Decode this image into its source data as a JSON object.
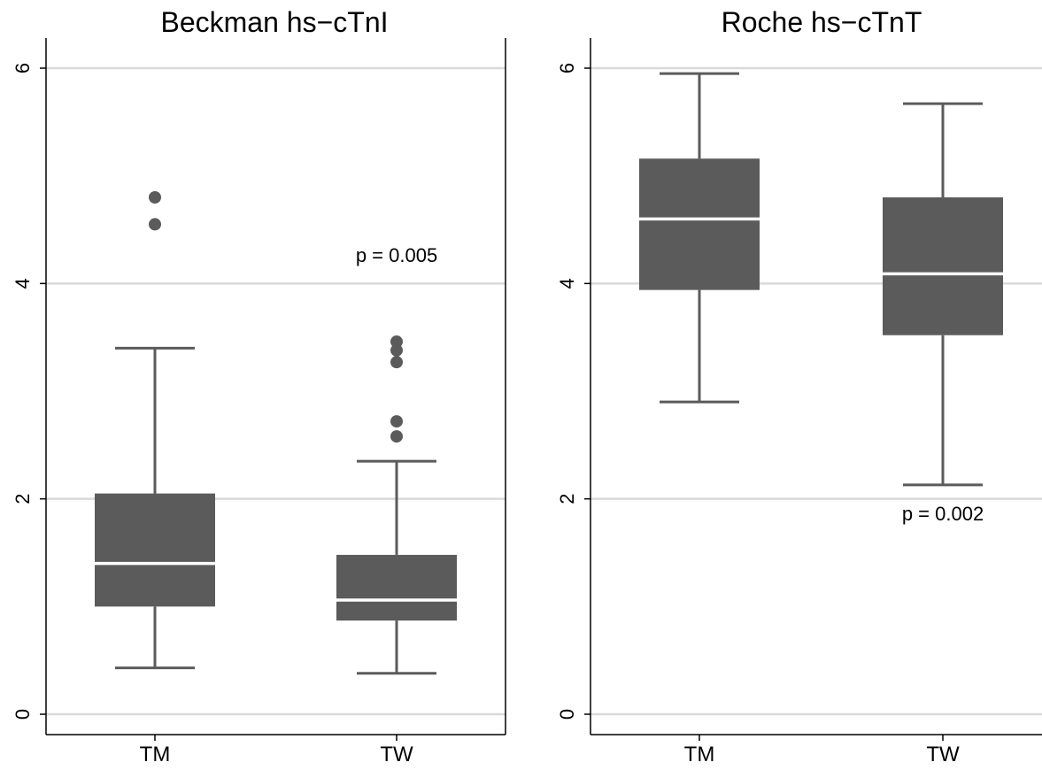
{
  "chart_data": [
    {
      "type": "box",
      "title": "Beckman hs−cTnI",
      "categories": [
        "TM",
        "TW"
      ],
      "ylim": [
        0,
        6
      ],
      "yticks": [
        0,
        2,
        4,
        6
      ],
      "grid": true,
      "boxes": [
        {
          "category": "TM",
          "whisker_low": 0.43,
          "q1": 1.0,
          "median": 1.4,
          "q3": 2.05,
          "whisker_high": 3.4,
          "outliers": [
            4.55,
            4.8
          ]
        },
        {
          "category": "TW",
          "whisker_low": 0.38,
          "q1": 0.87,
          "median": 1.06,
          "q3": 1.48,
          "whisker_high": 2.35,
          "outliers": [
            2.58,
            2.72,
            3.27,
            3.38,
            3.46
          ]
        }
      ],
      "annotation": {
        "text": "p = 0.005",
        "x": "TW",
        "y": 4.2
      }
    },
    {
      "type": "box",
      "title": "Roche hs−cTnT",
      "categories": [
        "TM",
        "TW"
      ],
      "ylim": [
        0,
        6
      ],
      "yticks": [
        0,
        2,
        4,
        6
      ],
      "grid": true,
      "boxes": [
        {
          "category": "TM",
          "whisker_low": 2.9,
          "q1": 3.94,
          "median": 4.6,
          "q3": 5.16,
          "whisker_high": 5.95,
          "outliers": []
        },
        {
          "category": "TW",
          "whisker_low": 2.13,
          "q1": 3.52,
          "median": 4.09,
          "q3": 4.8,
          "whisker_high": 5.67,
          "outliers": []
        }
      ],
      "annotation": {
        "text": "p = 0.002",
        "x": "TW",
        "y": 1.8
      }
    }
  ],
  "colors": {
    "box": "#5b5b5b",
    "median": "#ffffff",
    "grid": "#d9d9d9",
    "axis": "#000000"
  }
}
